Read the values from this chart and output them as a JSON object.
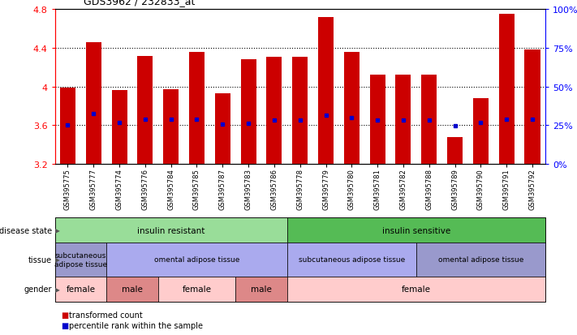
{
  "title": "GDS3962 / 232833_at",
  "samples": [
    "GSM395775",
    "GSM395777",
    "GSM395774",
    "GSM395776",
    "GSM395784",
    "GSM395785",
    "GSM395787",
    "GSM395783",
    "GSM395786",
    "GSM395778",
    "GSM395779",
    "GSM395780",
    "GSM395781",
    "GSM395782",
    "GSM395788",
    "GSM395789",
    "GSM395790",
    "GSM395791",
    "GSM395792"
  ],
  "bar_values": [
    3.99,
    4.46,
    3.96,
    4.32,
    3.97,
    4.36,
    3.93,
    4.28,
    4.31,
    4.31,
    4.72,
    4.36,
    4.12,
    4.12,
    4.12,
    3.48,
    3.88,
    4.75,
    4.38
  ],
  "percentile_values": [
    3.6,
    3.72,
    3.63,
    3.66,
    3.66,
    3.66,
    3.61,
    3.62,
    3.65,
    3.65,
    3.7,
    3.68,
    3.65,
    3.65,
    3.65,
    3.59,
    3.63,
    3.66,
    3.66
  ],
  "ymin": 3.2,
  "ymax": 4.8,
  "bar_color": "#CC0000",
  "percentile_color": "#0000CC",
  "bar_bottom": 3.2,
  "disease_state_groups": [
    {
      "label": "insulin resistant",
      "start": 0,
      "end": 9,
      "color": "#99DD99"
    },
    {
      "label": "insulin sensitive",
      "start": 9,
      "end": 19,
      "color": "#55BB55"
    }
  ],
  "tissue_groups": [
    {
      "label": "subcutaneous\nadipose tissue",
      "start": 0,
      "end": 2,
      "color": "#9999CC"
    },
    {
      "label": "omental adipose tissue",
      "start": 2,
      "end": 9,
      "color": "#AAAAEE"
    },
    {
      "label": "subcutaneous adipose tissue",
      "start": 9,
      "end": 14,
      "color": "#AAAAEE"
    },
    {
      "label": "omental adipose tissue",
      "start": 14,
      "end": 19,
      "color": "#9999CC"
    }
  ],
  "gender_groups": [
    {
      "label": "female",
      "start": 0,
      "end": 2,
      "color": "#FFCCCC"
    },
    {
      "label": "male",
      "start": 2,
      "end": 4,
      "color": "#DD8888"
    },
    {
      "label": "female",
      "start": 4,
      "end": 7,
      "color": "#FFCCCC"
    },
    {
      "label": "male",
      "start": 7,
      "end": 9,
      "color": "#DD8888"
    },
    {
      "label": "female",
      "start": 9,
      "end": 19,
      "color": "#FFCCCC"
    }
  ],
  "legend_bar": "transformed count",
  "legend_pct": "percentile rank within the sample"
}
